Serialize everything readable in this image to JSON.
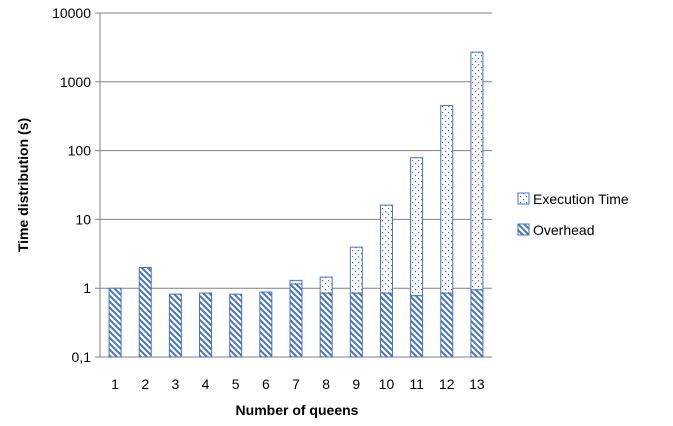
{
  "chart_data": {
    "type": "bar",
    "stacked": true,
    "title": "",
    "xlabel": "Number of queens",
    "ylabel": "Time distribution (s)",
    "yscale": "log",
    "ylim": [
      0.1,
      10000
    ],
    "yticks": [
      "0,1",
      "1",
      "10",
      "100",
      "1000",
      "10000"
    ],
    "grid": true,
    "legend_position": "right",
    "categories": [
      "1",
      "2",
      "3",
      "4",
      "5",
      "6",
      "7",
      "8",
      "9",
      "10",
      "11",
      "12",
      "13"
    ],
    "series": [
      {
        "name": "Overhead",
        "pattern": "diagonal-stripes",
        "color": "#4472C4",
        "values": [
          1.0,
          2.0,
          0.82,
          0.85,
          0.82,
          0.88,
          1.15,
          0.85,
          0.85,
          0.85,
          0.78,
          0.85,
          0.95
        ]
      },
      {
        "name": "Execution Time",
        "pattern": "dotted",
        "color": "#4472C4",
        "values": [
          0,
          0,
          0,
          0,
          0,
          0,
          0.15,
          0.6,
          3.1,
          15.3,
          78,
          450,
          2700
        ]
      }
    ]
  }
}
